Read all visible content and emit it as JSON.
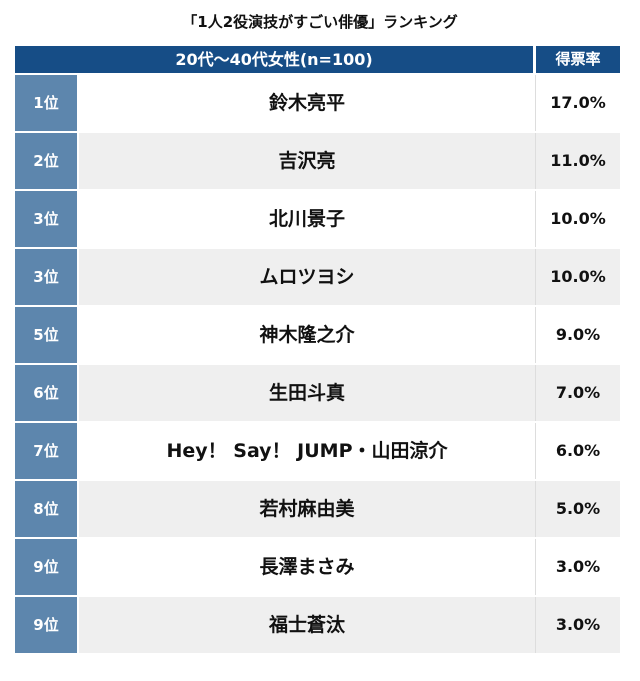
{
  "title": "「1人2役演技がすごい俳優」ランキング",
  "header": {
    "segment": "20代〜40代女性(n=100)",
    "vote_rate": "得票率"
  },
  "rows": [
    {
      "rank": "1位",
      "name": "鈴木亮平",
      "pct": "17.0%"
    },
    {
      "rank": "2位",
      "name": "吉沢亮",
      "pct": "11.0%"
    },
    {
      "rank": "3位",
      "name": "北川景子",
      "pct": "10.0%"
    },
    {
      "rank": "3位",
      "name": "ムロツヨシ",
      "pct": "10.0%"
    },
    {
      "rank": "5位",
      "name": "神木隆之介",
      "pct": "9.0%"
    },
    {
      "rank": "6位",
      "name": "生田斗真",
      "pct": "7.0%"
    },
    {
      "rank": "7位",
      "name": "Hey！ Say！ JUMP・山田涼介",
      "pct": "6.0%"
    },
    {
      "rank": "8位",
      "name": "若村麻由美",
      "pct": "5.0%"
    },
    {
      "rank": "9位",
      "name": "長澤まさみ",
      "pct": "3.0%"
    },
    {
      "rank": "9位",
      "name": "福士蒼汰",
      "pct": "3.0%"
    }
  ],
  "colors": {
    "header_bg": "#164d86",
    "rank_bg": "#5d86ad",
    "stripe_bg": "#efefef"
  }
}
